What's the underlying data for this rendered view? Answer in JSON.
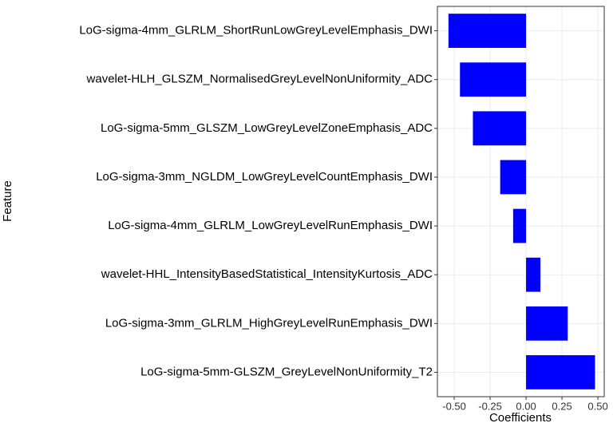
{
  "chart_data": {
    "type": "barh",
    "x_label": "Coefficients",
    "y_label": "Feature",
    "categories": [
      "LoG-sigma-4mm_GLRLM_ShortRunLowGreyLevelEmphasis_DWI",
      "wavelet-HLH_GLSZM_NormalisedGreyLevelNonUniformity_ADC",
      "LoG-sigma-5mm_GLSZM_LowGreyLevelZoneEmphasis_ADC",
      "LoG-sigma-3mm_NGLDM_LowGreyLevelCountEmphasis_DWI",
      "LoG-sigma-4mm_GLRLM_LowGreyLevelRunEmphasis_DWI",
      "wavelet-HHL_IntensityBasedStatistical_IntensityKurtosis_ADC",
      "LoG-sigma-3mm_GLRLM_HighGreyLevelRunEmphasis_DWI",
      "LoG-sigma-5mm-GLSZM_GreyLevelNonUniformity_T2"
    ],
    "values": [
      -0.54,
      -0.46,
      -0.37,
      -0.18,
      -0.09,
      0.1,
      0.29,
      0.48
    ],
    "color": "#0000ff",
    "xlim": [
      -0.617,
      0.544
    ],
    "xticks": [
      {
        "value": -0.5,
        "label": "-0.50"
      },
      {
        "value": -0.25,
        "label": "-0.25"
      },
      {
        "value": 0,
        "label": "0.00"
      },
      {
        "value": 0.25,
        "label": "0.25"
      },
      {
        "value": 0.5,
        "label": "0.50"
      }
    ],
    "grid": true
  }
}
